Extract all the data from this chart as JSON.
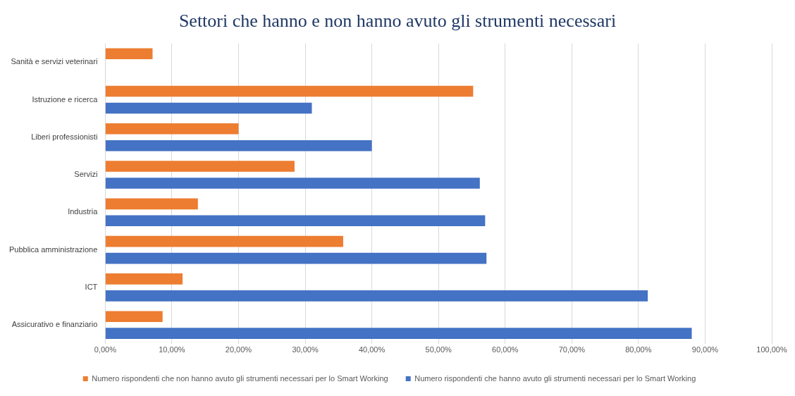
{
  "chart_data": {
    "type": "bar",
    "orientation": "horizontal",
    "title": "Settori che hanno e non hanno avuto gli strumenti necessari",
    "categories": [
      "Sanità e servizi veterinari",
      "Istruzione e ricerca",
      "Liberi professionisti",
      "Servizi",
      "Industria",
      "Pubblica amministrazione",
      "ICT",
      "Assicurativo e finanziario"
    ],
    "series": [
      {
        "name": "Numero rispondenti che non hanno avuto gli strumenti necessari per lo Smart Working",
        "color": "#ed7d31",
        "values": [
          7.1,
          55.2,
          20.0,
          28.4,
          13.9,
          35.7,
          11.6,
          8.6
        ]
      },
      {
        "name": "Numero rispondenti che hanno avuto gli strumenti necessari per lo Smart Working",
        "color": "#4472c4",
        "values": [
          null,
          31.0,
          40.0,
          56.2,
          57.0,
          57.2,
          81.4,
          88.0
        ]
      }
    ],
    "xlim": [
      0,
      100
    ],
    "xticks": [
      {
        "value": 0,
        "label": "0,00%"
      },
      {
        "value": 10,
        "label": "10,00%"
      },
      {
        "value": 20,
        "label": "20,00%"
      },
      {
        "value": 30,
        "label": "30,00%"
      },
      {
        "value": 40,
        "label": "40,00%"
      },
      {
        "value": 50,
        "label": "50,00%"
      },
      {
        "value": 60,
        "label": "60,00%"
      },
      {
        "value": 70,
        "label": "70,00%"
      },
      {
        "value": 80,
        "label": "80,00%"
      },
      {
        "value": 90,
        "label": "90,00%"
      },
      {
        "value": 100,
        "label": "100,00%"
      }
    ],
    "grid": "x",
    "legend": "bottom"
  }
}
